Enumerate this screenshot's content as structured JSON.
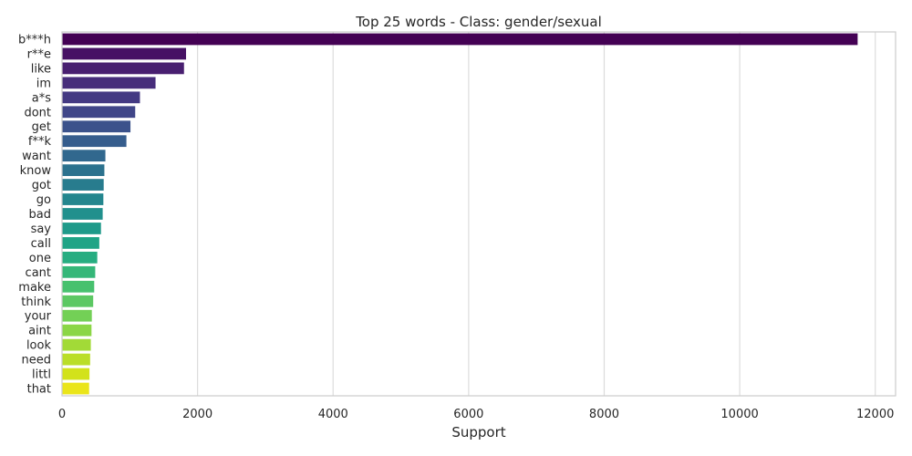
{
  "chart_data": {
    "type": "bar",
    "orientation": "horizontal",
    "title": "Top 25 words - Class: gender/sexual",
    "xlabel": "Support",
    "ylabel": "",
    "xlim": [
      0,
      12300
    ],
    "xticks": [
      0,
      2000,
      4000,
      6000,
      8000,
      10000,
      12000
    ],
    "grid": "vertical",
    "legend": "none",
    "palette": "viridis",
    "categories": [
      "b***h",
      "r**e",
      "like",
      "im",
      "a*s",
      "dont",
      "get",
      "f**k",
      "want",
      "know",
      "got",
      "go",
      "bad",
      "say",
      "call",
      "one",
      "cant",
      "make",
      "think",
      "your",
      "aint",
      "look",
      "need",
      "littl",
      "that"
    ],
    "values": [
      11740,
      1830,
      1800,
      1380,
      1150,
      1080,
      1010,
      950,
      640,
      625,
      615,
      610,
      600,
      575,
      550,
      520,
      490,
      475,
      460,
      440,
      435,
      425,
      415,
      405,
      400
    ],
    "colors": [
      "#440154",
      "#471164",
      "#481f70",
      "#472d7b",
      "#443a83",
      "#404688",
      "#3b528b",
      "#365d8d",
      "#31688e",
      "#2c728e",
      "#287c8e",
      "#24868e",
      "#21908d",
      "#1f9a8a",
      "#20a486",
      "#27ad81",
      "#35b779",
      "#47c16e",
      "#5cc863",
      "#73d056",
      "#8bd646",
      "#a2da37",
      "#bade28",
      "#d2e21b",
      "#eae51a"
    ]
  }
}
